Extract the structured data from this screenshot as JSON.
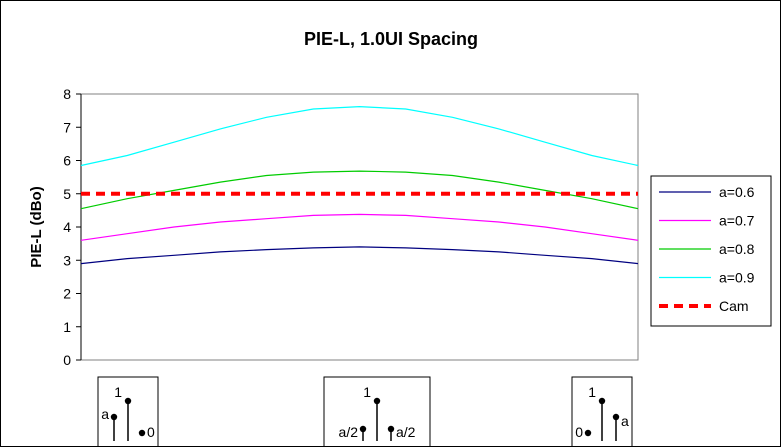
{
  "chart_data": {
    "type": "line",
    "title": "PIE-L, 1.0UI Spacing",
    "xlabel": "",
    "ylabel": "PIE-L (dBo)",
    "ylim": [
      0,
      8
    ],
    "yticks": [
      "0",
      "1",
      "2",
      "3",
      "4",
      "5",
      "6",
      "7",
      "8"
    ],
    "xlim": [
      0,
      1
    ],
    "x": [
      0,
      0.083,
      0.167,
      0.25,
      0.333,
      0.417,
      0.5,
      0.583,
      0.667,
      0.75,
      0.833,
      0.917,
      1
    ],
    "grid": false,
    "legend": "right",
    "series": [
      {
        "name": "a=0.6",
        "color": "#000080",
        "style": "solid",
        "values": [
          2.9,
          3.05,
          3.15,
          3.25,
          3.32,
          3.37,
          3.4,
          3.37,
          3.32,
          3.25,
          3.15,
          3.05,
          2.9
        ]
      },
      {
        "name": "a=0.7",
        "color": "#ff00ff",
        "style": "solid",
        "values": [
          3.6,
          3.8,
          4.0,
          4.15,
          4.25,
          4.35,
          4.38,
          4.35,
          4.25,
          4.15,
          4.0,
          3.8,
          3.6
        ]
      },
      {
        "name": "a=0.8",
        "color": "#00cc00",
        "style": "solid",
        "values": [
          4.55,
          4.85,
          5.1,
          5.35,
          5.55,
          5.65,
          5.68,
          5.65,
          5.55,
          5.35,
          5.1,
          4.85,
          4.55
        ]
      },
      {
        "name": "a=0.9",
        "color": "#00ffff",
        "style": "solid",
        "values": [
          5.85,
          6.15,
          6.55,
          6.95,
          7.3,
          7.55,
          7.62,
          7.55,
          7.3,
          6.95,
          6.55,
          6.15,
          5.85
        ]
      },
      {
        "name": "Cam",
        "color": "#ff0000",
        "style": "dashed",
        "values": [
          5,
          5,
          5,
          5,
          5,
          5,
          5,
          5,
          5,
          5,
          5,
          5,
          5
        ]
      }
    ],
    "pulse_diagrams": [
      {
        "position": "left",
        "main": "1",
        "pre": "a",
        "post": "0"
      },
      {
        "position": "center",
        "main": "1",
        "pre": "a/2",
        "post": "a/2"
      },
      {
        "position": "right",
        "main": "1",
        "pre": "0",
        "post": "a"
      }
    ]
  }
}
